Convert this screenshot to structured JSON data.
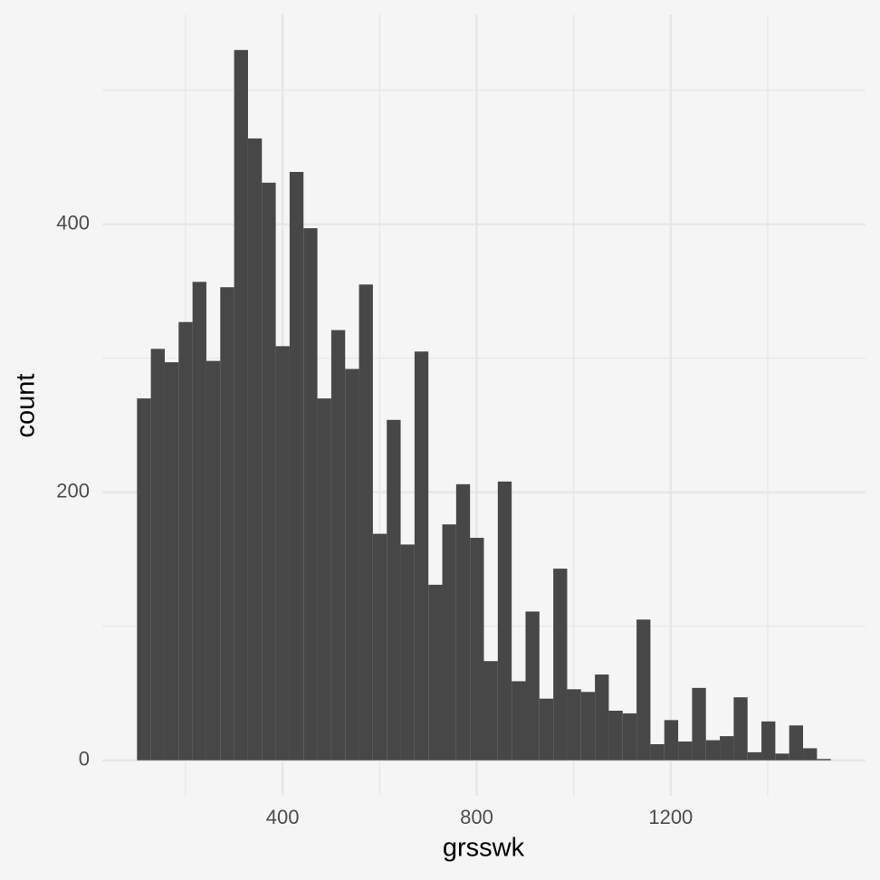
{
  "chart_data": {
    "type": "histogram",
    "x_label": "grsswk",
    "y_label": "count",
    "color": "#474747",
    "background": "#f5f5f5",
    "grid_color": "#e6e6e6",
    "grid": true,
    "bins": [
      100,
      128.6,
      157.2,
      185.8,
      214.4,
      243,
      271.6,
      300.2,
      328.8,
      357.4,
      386,
      414.6,
      443.2,
      471.8,
      500.4,
      529,
      557.6,
      586.2,
      614.8,
      643.4,
      672,
      700.6,
      729.2,
      757.8,
      786.4,
      815,
      843.6,
      872.2,
      900.8,
      929.4,
      958,
      986.6,
      1015.2,
      1043.8,
      1072.4,
      1101,
      1129.6,
      1158.2,
      1186.8,
      1215.4,
      1244,
      1272.6,
      1301.2,
      1329.8,
      1358.4,
      1387,
      1415.6,
      1444.2,
      1472.8,
      1501.4,
      1530
    ],
    "values": [
      270,
      307,
      297,
      327,
      357,
      298,
      353,
      530,
      464,
      431,
      309,
      439,
      397,
      270,
      321,
      292,
      355,
      169,
      254,
      161,
      305,
      131,
      176,
      206,
      166,
      74,
      208,
      59,
      111,
      46,
      143,
      53,
      51,
      64,
      37,
      35,
      105,
      12,
      30,
      14,
      54,
      15,
      18,
      47,
      6,
      29,
      5,
      26,
      9,
      1
    ],
    "xlim": [
      28.5,
      1601.5
    ],
    "ylim": [
      -26.5,
      556.5
    ],
    "xticks": [
      400,
      800,
      1200
    ],
    "yticks": [
      0,
      200,
      400
    ],
    "x_minor_ticks": [
      200,
      600,
      1000,
      1400
    ],
    "y_minor_ticks": [
      100,
      300,
      500
    ]
  }
}
